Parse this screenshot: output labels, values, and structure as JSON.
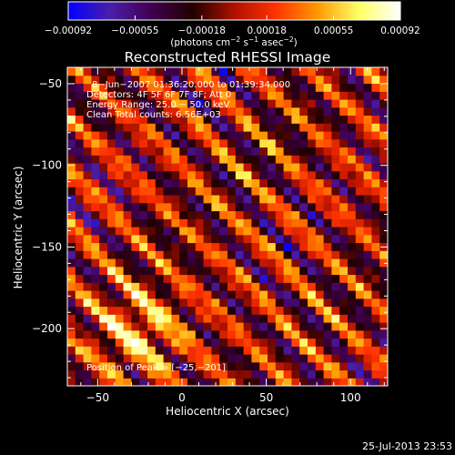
{
  "chart_data": {
    "type": "heatmap",
    "title": "Reconstructed RHESSI Image",
    "xlabel": "Heliocentric X (arcsec)",
    "ylabel": "Heliocentric Y (arcsec)",
    "xlim": [
      -68,
      122
    ],
    "ylim": [
      -235,
      -40
    ],
    "x_ticks": [
      -50,
      0,
      50,
      100
    ],
    "x_tick_labels": [
      "−50",
      "0",
      "50",
      "100"
    ],
    "y_ticks": [
      -50,
      -100,
      -150,
      -200
    ],
    "y_tick_labels": [
      "−50",
      "−100",
      "−150",
      "−200"
    ],
    "colorbar": {
      "range": [
        -0.00092,
        0.00092
      ],
      "tick_values": [
        -0.00092,
        -0.00055,
        -0.00018,
        0.00018,
        0.00055,
        0.00092
      ],
      "tick_labels": [
        "−0.00092",
        "−0.00055",
        "−0.00018",
        "0.00018",
        "0.00055",
        "0.00092"
      ],
      "unit_prefix": "(photons cm",
      "unit_exp1": "−2",
      "unit_mid": " s",
      "unit_exp2": "−1",
      "unit_mid2": " asec",
      "unit_exp3": "−2",
      "unit_suffix": ")",
      "colors": [
        "#0000ff",
        "#4b1ea8",
        "#400050",
        "#200000",
        "#b01000",
        "#ff3300",
        "#ff9900",
        "#ffff66",
        "#ffffff"
      ]
    },
    "annotations": [
      "8−Jun−2007 01:36:20.000 to 01:39:34.000",
      "Detectors: 4F 5F 6F 7F 8F; Att 0",
      "Energy Range: 25.0 − 50.0 keV",
      "Clean    Total counts: 6.56E+03"
    ],
    "peak_label": "Position of Peak = [−25,−201]",
    "peak_position": [
      -25,
      -201
    ]
  },
  "footer": {
    "timestamp": "25-Jul-2013 23:53"
  }
}
